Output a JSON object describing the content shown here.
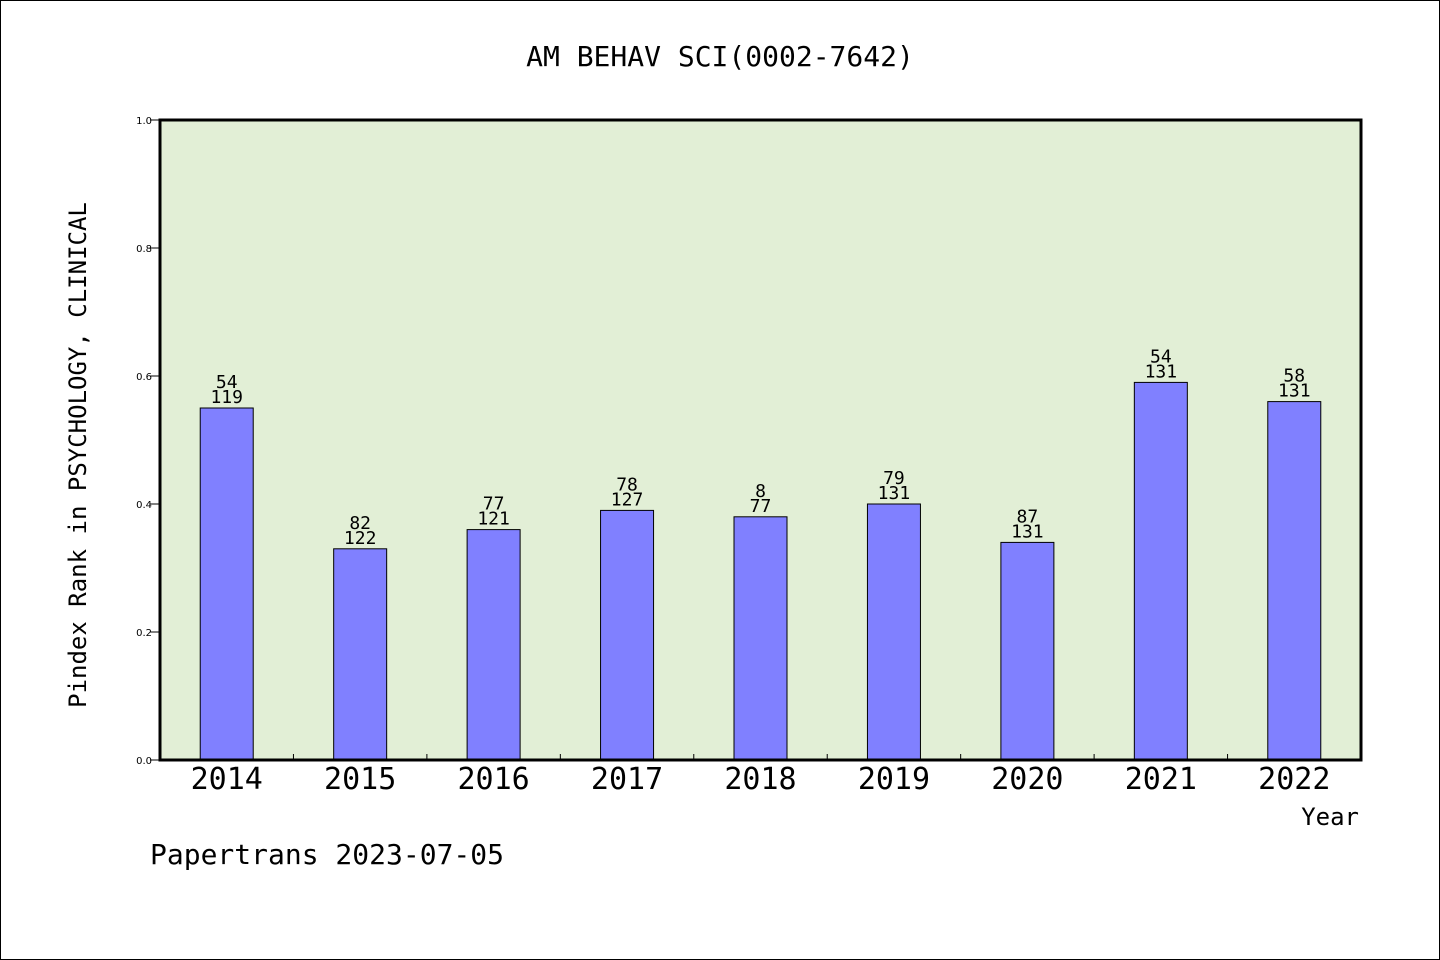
{
  "chart_data": {
    "type": "bar",
    "title": "AM BEHAV SCI(0002-7642)",
    "xlabel": "Year",
    "ylabel": "Pindex Rank in PSYCHOLOGY, CLINICAL",
    "ylim": [
      0.0,
      1.0
    ],
    "yticks": [
      "0.0",
      "0.2",
      "0.4",
      "0.6",
      "0.8",
      "1.0"
    ],
    "grid": false,
    "plot_background": "#e2efd6",
    "bar_color": "#8080ff",
    "categories": [
      "2014",
      "2015",
      "2016",
      "2017",
      "2018",
      "2019",
      "2020",
      "2021",
      "2022"
    ],
    "values": [
      0.55,
      0.33,
      0.36,
      0.39,
      0.38,
      0.4,
      0.34,
      0.59,
      0.56
    ],
    "label_top": [
      "54",
      "82",
      "77",
      "78",
      "8",
      "79",
      "87",
      "54",
      "58"
    ],
    "label_bottom": [
      "119",
      "122",
      "121",
      "127",
      "77",
      "131",
      "131",
      "131",
      "131"
    ]
  },
  "footer": {
    "source": "Papertrans 2023-07-05"
  }
}
